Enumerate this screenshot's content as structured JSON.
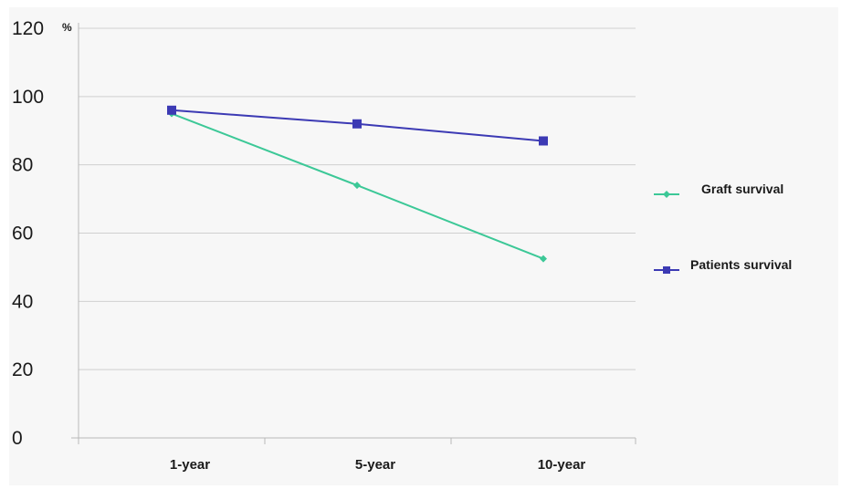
{
  "chart_data": {
    "type": "line",
    "title": "",
    "xlabel": "",
    "ylabel": "",
    "y_unit": "%",
    "categories": [
      "1-year",
      "5-year",
      "10-year"
    ],
    "ylim": [
      0,
      120
    ],
    "yticks": [
      "0",
      "20",
      "40",
      "60",
      "80",
      "100",
      "120"
    ],
    "grid": true,
    "legend_position": "right",
    "series": [
      {
        "name": "Graft survival",
        "values": [
          95,
          74,
          52.5
        ],
        "color": "#3cc897",
        "marker": "diamond"
      },
      {
        "name": "Patients survival",
        "values": [
          96,
          92,
          87
        ],
        "color": "#3c3ab4",
        "marker": "square"
      }
    ]
  }
}
